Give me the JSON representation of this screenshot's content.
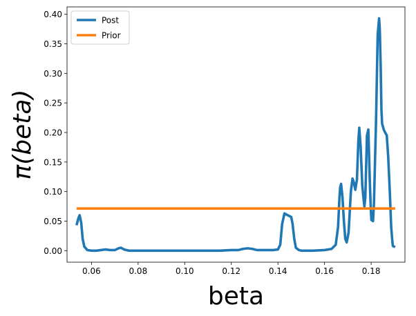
{
  "chart_data": {
    "type": "line",
    "xlabel": "beta",
    "ylabel": "π(beta)",
    "xlim": [
      0.0495,
      0.1945
    ],
    "ylim": [
      -0.0195,
      0.4125
    ],
    "xticks": [
      0.06,
      0.08,
      0.1,
      0.12,
      0.14,
      0.16,
      0.18
    ],
    "xtick_labels": [
      "0.06",
      "0.08",
      "0.10",
      "0.12",
      "0.14",
      "0.16",
      "0.18"
    ],
    "yticks": [
      0.0,
      0.05,
      0.1,
      0.15,
      0.2,
      0.25,
      0.3,
      0.35,
      0.4
    ],
    "ytick_labels": [
      "0.00",
      "0.05",
      "0.10",
      "0.15",
      "0.20",
      "0.25",
      "0.30",
      "0.35",
      "0.40"
    ],
    "legend_position": "upper-left",
    "grid": false,
    "series": [
      {
        "name": "Post",
        "color": "#1f77b4",
        "x": [
          0.0536,
          0.0543,
          0.0549,
          0.0556,
          0.0562,
          0.0569,
          0.0582,
          0.0601,
          0.0621,
          0.064,
          0.066,
          0.068,
          0.07,
          0.0716,
          0.0726,
          0.074,
          0.076,
          0.08,
          0.085,
          0.09,
          0.095,
          0.1,
          0.105,
          0.11,
          0.115,
          0.12,
          0.123,
          0.125,
          0.127,
          0.129,
          0.131,
          0.135,
          0.138,
          0.14,
          0.141,
          0.1418,
          0.1428,
          0.1437,
          0.1457,
          0.1463,
          0.147,
          0.1477,
          0.149,
          0.15,
          0.155,
          0.16,
          0.163,
          0.1648,
          0.1658,
          0.1664,
          0.1667,
          0.1671,
          0.1677,
          0.1683,
          0.1689,
          0.1695,
          0.1703,
          0.1713,
          0.172,
          0.1726,
          0.1732,
          0.1739,
          0.1745,
          0.1749,
          0.1755,
          0.1762,
          0.1768,
          0.1771,
          0.1775,
          0.1782,
          0.1788,
          0.1794,
          0.1798,
          0.1801,
          0.1808,
          0.1812,
          0.1821,
          0.1828,
          0.1834,
          0.1837,
          0.1841,
          0.1844,
          0.1847,
          0.1854,
          0.186,
          0.1867,
          0.1873,
          0.188,
          0.1886,
          0.189,
          0.1893,
          0.1903
        ],
        "values": [
          0.043,
          0.054,
          0.06,
          0.047,
          0.02,
          0.007,
          0.001,
          0.0,
          0.0,
          0.001,
          0.002,
          0.001,
          0.001,
          0.004,
          0.005,
          0.002,
          0.0,
          0.0,
          0.0,
          0.0,
          0.0,
          0.0,
          0.0,
          0.0,
          0.0,
          0.001,
          0.001,
          0.003,
          0.004,
          0.003,
          0.001,
          0.001,
          0.001,
          0.002,
          0.01,
          0.045,
          0.063,
          0.061,
          0.057,
          0.045,
          0.02,
          0.005,
          0.001,
          0.0,
          0.0,
          0.001,
          0.003,
          0.01,
          0.04,
          0.09,
          0.107,
          0.113,
          0.09,
          0.05,
          0.02,
          0.014,
          0.03,
          0.1,
          0.122,
          0.115,
          0.103,
          0.12,
          0.185,
          0.208,
          0.175,
          0.11,
          0.085,
          0.075,
          0.09,
          0.195,
          0.205,
          0.12,
          0.075,
          0.052,
          0.05,
          0.08,
          0.22,
          0.365,
          0.393,
          0.375,
          0.31,
          0.24,
          0.215,
          0.205,
          0.2,
          0.195,
          0.16,
          0.1,
          0.04,
          0.02,
          0.008,
          0.006
        ]
      },
      {
        "name": "Prior",
        "color": "#ff7f0e",
        "x": [
          0.0536,
          0.1903
        ],
        "values": [
          0.0714,
          0.0714
        ]
      }
    ]
  }
}
